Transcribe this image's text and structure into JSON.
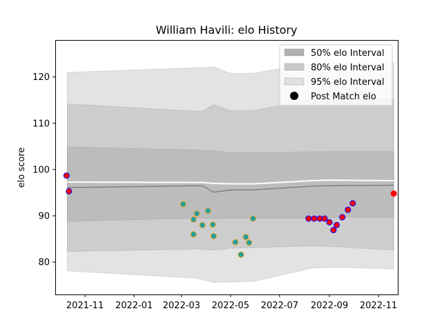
{
  "chart_data": {
    "type": "line",
    "title": "William Havili: elo History",
    "xlabel": "",
    "ylabel": "elo score",
    "xlim": [
      "2021-09-25",
      "2022-11-25"
    ],
    "ylim": [
      73,
      128
    ],
    "x_ticks": [
      "2021-11",
      "2022-01",
      "2022-03",
      "2022-05",
      "2022-07",
      "2022-09",
      "2022-11"
    ],
    "y_ticks": [
      80,
      90,
      100,
      110,
      120
    ],
    "grid": false,
    "legend_position": "top-right",
    "legend": [
      {
        "label": "50% elo Interval",
        "kind": "band",
        "color": "#b0b0b0"
      },
      {
        "label": "80% elo Interval",
        "kind": "band",
        "color": "#c8c8c8"
      },
      {
        "label": "95% elo Interval",
        "kind": "band",
        "color": "#e0e0e0"
      },
      {
        "label": "Post Match elo",
        "kind": "marker",
        "color": "#000000"
      }
    ],
    "band_x": [
      "2021-10-10",
      "2022-03-20",
      "2022-03-27",
      "2022-04-10",
      "2022-05-01",
      "2022-05-29",
      "2022-08-10",
      "2022-08-30",
      "2022-09-10",
      "2022-11-20"
    ],
    "bands": {
      "p95_upper": [
        121.0,
        122.0,
        122.0,
        122.2,
        120.8,
        120.8,
        123.0,
        123.0,
        123.0,
        123.0
      ],
      "p80_upper": [
        114.2,
        112.6,
        112.6,
        114.0,
        112.7,
        112.7,
        115.2,
        115.2,
        115.2,
        115.2
      ],
      "p50_upper": [
        104.9,
        104.2,
        104.2,
        104.0,
        103.7,
        103.7,
        103.8,
        103.9,
        103.9,
        103.9
      ],
      "p50_lower": [
        88.8,
        89.5,
        89.5,
        89.4,
        89.5,
        89.5,
        89.5,
        89.5,
        89.7,
        89.7
      ],
      "p80_lower": [
        82.3,
        82.8,
        82.8,
        82.6,
        83.0,
        83.1,
        83.5,
        83.4,
        83.3,
        82.6
      ],
      "p95_lower": [
        78.1,
        76.5,
        76.2,
        75.6,
        75.7,
        75.8,
        78.7,
        78.8,
        78.9,
        78.5
      ]
    },
    "median_line": {
      "color": "#808080",
      "x": [
        "2021-10-10",
        "2022-03-20",
        "2022-03-27",
        "2022-04-10",
        "2022-05-01",
        "2022-05-29",
        "2022-08-10",
        "2022-08-30",
        "2022-11-20"
      ],
      "y": [
        96.1,
        96.5,
        96.5,
        95.1,
        95.6,
        95.6,
        96.4,
        96.5,
        96.6
      ]
    },
    "mean_line": {
      "color": "#ffffff",
      "x": [
        "2021-10-10",
        "2022-03-20",
        "2022-03-27",
        "2022-04-10",
        "2022-05-01",
        "2022-05-29",
        "2022-08-10",
        "2022-08-30",
        "2022-11-20"
      ],
      "y": [
        97.3,
        97.2,
        97.2,
        97.0,
        96.9,
        96.9,
        97.6,
        97.7,
        97.6
      ]
    },
    "series": [
      {
        "marker_face": "#ff0000",
        "marker_edge": "#0000ff",
        "points": [
          {
            "x": "2021-10-09",
            "y": 98.7
          },
          {
            "x": "2021-10-12",
            "y": 95.3
          }
        ]
      },
      {
        "marker_face": "#20a0a0",
        "marker_edge": "#e8a020",
        "points": [
          {
            "x": "2022-03-03",
            "y": 92.5
          },
          {
            "x": "2022-03-16",
            "y": 86.0
          },
          {
            "x": "2022-03-16",
            "y": 89.2
          },
          {
            "x": "2022-03-20",
            "y": 90.5
          },
          {
            "x": "2022-03-27",
            "y": 88.0
          },
          {
            "x": "2022-04-03",
            "y": 91.1
          },
          {
            "x": "2022-04-09",
            "y": 88.1
          },
          {
            "x": "2022-04-10",
            "y": 85.6
          },
          {
            "x": "2022-05-07",
            "y": 84.3
          },
          {
            "x": "2022-05-14",
            "y": 81.6
          },
          {
            "x": "2022-05-20",
            "y": 85.4
          },
          {
            "x": "2022-05-24",
            "y": 84.2
          },
          {
            "x": "2022-05-29",
            "y": 89.4
          }
        ]
      },
      {
        "marker_face": "#ff0000",
        "marker_edge": "#0000ff",
        "points": [
          {
            "x": "2022-08-06",
            "y": 89.4
          },
          {
            "x": "2022-08-13",
            "y": 89.4
          },
          {
            "x": "2022-08-20",
            "y": 89.4
          },
          {
            "x": "2022-08-26",
            "y": 89.4
          },
          {
            "x": "2022-09-01",
            "y": 88.6
          },
          {
            "x": "2022-09-06",
            "y": 86.9
          },
          {
            "x": "2022-09-10",
            "y": 88.0
          },
          {
            "x": "2022-09-17",
            "y": 89.7
          },
          {
            "x": "2022-09-24",
            "y": 91.3
          },
          {
            "x": "2022-09-30",
            "y": 92.7
          }
        ]
      },
      {
        "marker_face": "#ff0000",
        "marker_edge": "#ff0000",
        "points": [
          {
            "x": "2022-11-20",
            "y": 94.8
          }
        ]
      }
    ]
  }
}
